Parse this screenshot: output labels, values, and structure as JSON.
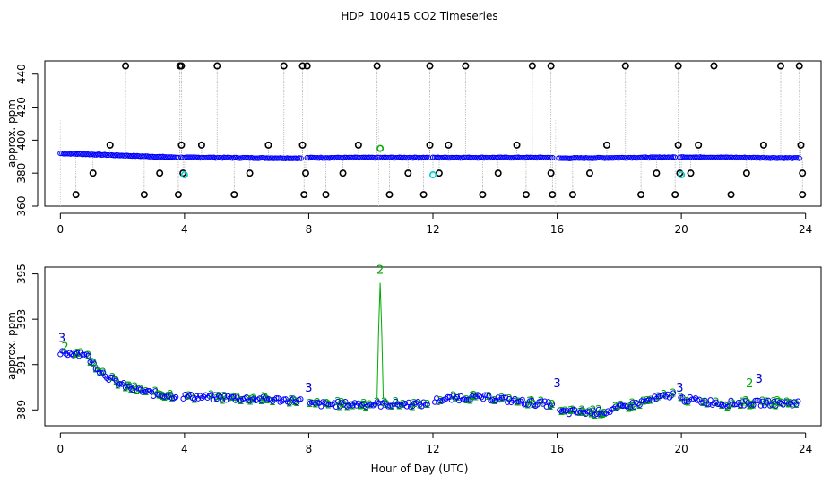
{
  "chart_data": [
    {
      "type": "scatter",
      "title": "HDP_100415  CO2 Timeseries",
      "xlabel": "",
      "ylabel": "approx. ppm",
      "xlim": [
        -0.5,
        24.5
      ],
      "ylim": [
        360,
        448
      ],
      "xticks": [
        0,
        4,
        8,
        12,
        16,
        20,
        24
      ],
      "yticks": [
        360,
        380,
        400,
        420,
        440
      ],
      "series": [
        {
          "name": "baseline",
          "color": "#0000ff",
          "segments": [
            {
              "start": 0.0,
              "end": 3.8,
              "v0": 392.0,
              "v1": 389.5
            },
            {
              "start": 3.9,
              "end": 7.8,
              "v0": 389.5,
              "v1": 389.0
            },
            {
              "start": 7.95,
              "end": 11.9,
              "v0": 389.3,
              "v1": 389.4
            },
            {
              "start": 12.0,
              "end": 15.9,
              "v0": 389.4,
              "v1": 389.4
            },
            {
              "start": 16.05,
              "end": 19.8,
              "v0": 389.0,
              "v1": 389.6
            },
            {
              "start": 19.95,
              "end": 23.8,
              "v0": 389.7,
              "v1": 389.1
            }
          ]
        },
        {
          "name": "high outliers",
          "color": "#000000",
          "x": [
            2.1,
            3.85,
            3.9,
            5.05,
            7.2,
            7.8,
            7.95,
            10.2,
            11.9,
            13.05,
            15.2,
            15.8,
            18.2,
            19.9,
            21.05,
            23.2,
            23.8
          ],
          "values": [
            445,
            445,
            445,
            445,
            445,
            445,
            445,
            445,
            445,
            445,
            445,
            445,
            445,
            445,
            445,
            445,
            445
          ]
        },
        {
          "name": "mid outliers",
          "color": "#000000",
          "x": [
            1.6,
            3.9,
            4.55,
            6.7,
            7.8,
            9.6,
            11.9,
            12.5,
            14.7,
            17.6,
            19.9,
            20.55,
            22.65,
            23.85
          ],
          "values": [
            397,
            397,
            397,
            397,
            397,
            397,
            397,
            397,
            397,
            397,
            397,
            397,
            397,
            397
          ]
        },
        {
          "name": "low outliers",
          "color": "#000000",
          "x": [
            0.5,
            1.05,
            2.7,
            3.2,
            3.8,
            5.6,
            6.1,
            7.85,
            8.55,
            9.1,
            10.6,
            11.2,
            11.7,
            12.2,
            13.6,
            14.1,
            15.0,
            15.85,
            16.5,
            17.05,
            18.7,
            19.2,
            19.8,
            20.3,
            21.6,
            22.1,
            23.9
          ],
          "values": [
            367,
            380,
            367,
            380,
            367,
            367,
            380,
            367,
            367,
            380,
            367,
            380,
            367,
            380,
            367,
            380,
            367,
            367,
            367,
            380,
            367,
            380,
            367,
            380,
            367,
            380,
            367
          ]
        },
        {
          "name": "low-mid outliers",
          "color": "#000000",
          "x": [
            3.95,
            7.9,
            15.8,
            19.95,
            23.9
          ],
          "values": [
            380,
            380,
            380,
            380,
            380
          ]
        },
        {
          "name": "cyan flags",
          "color": "#00cccc",
          "x": [
            4.0,
            12.0,
            20.0
          ],
          "values": [
            379,
            379,
            379
          ]
        },
        {
          "name": "green flag",
          "color": "#00aa00",
          "x": [
            10.3
          ],
          "values": [
            395
          ]
        }
      ]
    },
    {
      "type": "scatter",
      "title": "",
      "xlabel": "Hour of Day (UTC)",
      "ylabel": "approx. ppm",
      "xlim": [
        -0.5,
        24.5
      ],
      "ylim": [
        388.3,
        395.3
      ],
      "xticks": [
        0,
        4,
        8,
        12,
        16,
        20,
        24
      ],
      "yticks": [
        389,
        391,
        393,
        395
      ],
      "series": [
        {
          "name": "blue circles",
          "color": "#0000ff"
        },
        {
          "name": "green 2 labels",
          "color": "#00aa00"
        },
        {
          "name": "blue 3 labels",
          "color": "#0000cc"
        }
      ],
      "labels": [
        {
          "text": "3",
          "x": 0.05,
          "y": 392.0,
          "color": "#0000cc"
        },
        {
          "text": "2",
          "x": 0.15,
          "y": 391.6,
          "color": "#00aa00"
        },
        {
          "text": "2",
          "x": 10.3,
          "y": 395.0,
          "color": "#00aa00"
        },
        {
          "text": "3",
          "x": 8.0,
          "y": 389.8,
          "color": "#0000cc"
        },
        {
          "text": "3",
          "x": 16.0,
          "y": 390.0,
          "color": "#0000cc"
        },
        {
          "text": "3",
          "x": 19.95,
          "y": 389.8,
          "color": "#0000cc"
        },
        {
          "text": "3",
          "x": 22.5,
          "y": 390.2,
          "color": "#0000cc"
        },
        {
          "text": "2",
          "x": 22.2,
          "y": 390.0,
          "color": "#00aa00"
        }
      ],
      "spike": {
        "x": [
          10.2,
          10.25,
          10.3,
          10.35,
          10.4
        ],
        "values": [
          389.5,
          392.5,
          394.6,
          392.5,
          389.5
        ]
      }
    }
  ]
}
